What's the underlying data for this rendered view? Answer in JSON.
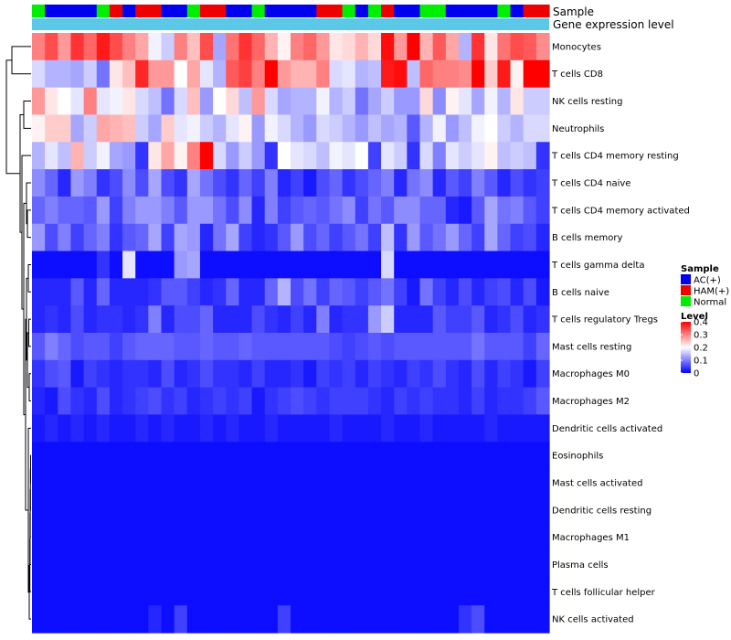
{
  "chart_data": {
    "type": "heatmap",
    "title": "",
    "annotations": [
      {
        "name": "Sample",
        "categories": [
          "N",
          "A",
          "A",
          "A",
          "A",
          "N",
          "H",
          "A",
          "H",
          "H",
          "A",
          "A",
          "N",
          "H",
          "H",
          "A",
          "A",
          "N",
          "A",
          "A",
          "A",
          "A",
          "H",
          "H",
          "N",
          "A",
          "N",
          "H",
          "A",
          "A",
          "N",
          "N",
          "A",
          "A",
          "A",
          "A",
          "N",
          "A",
          "H",
          "H"
        ]
      },
      {
        "name": "Gene expression level",
        "color": "#5bc8e8"
      }
    ],
    "rows": [
      "Monocytes",
      "T cells CD8",
      "NK cells resting",
      "Neutrophils",
      "T cells CD4 memory resting",
      "T cells CD4 naive",
      "T cells CD4 memory activated",
      "B cells memory",
      "T cells gamma delta",
      "B cells naive",
      "T cells regulatory  Tregs",
      "Mast cells resting",
      "Macrophages M0",
      "Macrophages M2",
      "Dendritic cells activated",
      "Eosinophils",
      "Mast cells activated",
      "Dendritic cells resting",
      "Macrophages M1",
      "Plasma cells",
      "T cells follicular helper",
      "NK cells activated"
    ],
    "n_columns": 40,
    "values": [
      [
        0.3,
        0.34,
        0.28,
        0.36,
        0.32,
        0.38,
        0.34,
        0.3,
        0.27,
        0.19,
        0.16,
        0.3,
        0.25,
        0.34,
        0.13,
        0.31,
        0.36,
        0.32,
        0.26,
        0.21,
        0.3,
        0.32,
        0.28,
        0.22,
        0.23,
        0.26,
        0.23,
        0.39,
        0.28,
        0.4,
        0.26,
        0.33,
        0.27,
        0.14,
        0.36,
        0.22,
        0.31,
        0.34,
        0.33,
        0.29
      ],
      [
        0.17,
        0.14,
        0.14,
        0.13,
        0.16,
        0.09,
        0.22,
        0.25,
        0.37,
        0.28,
        0.28,
        0.2,
        0.27,
        0.18,
        0.14,
        0.33,
        0.35,
        0.3,
        0.4,
        0.28,
        0.26,
        0.26,
        0.3,
        0.17,
        0.18,
        0.14,
        0.15,
        0.38,
        0.39,
        0.15,
        0.32,
        0.3,
        0.3,
        0.29,
        0.4,
        0.24,
        0.38,
        0.21,
        0.4,
        0.41
      ],
      [
        0.28,
        0.22,
        0.2,
        0.18,
        0.3,
        0.18,
        0.19,
        0.22,
        0.17,
        0.15,
        0.09,
        0.17,
        0.25,
        0.12,
        0.2,
        0.23,
        0.15,
        0.28,
        0.17,
        0.13,
        0.14,
        0.14,
        0.19,
        0.14,
        0.16,
        0.09,
        0.13,
        0.16,
        0.12,
        0.12,
        0.23,
        0.11,
        0.21,
        0.18,
        0.13,
        0.19,
        0.14,
        0.22,
        0.16,
        0.16
      ],
      [
        0.21,
        0.24,
        0.24,
        0.13,
        0.16,
        0.27,
        0.26,
        0.25,
        0.16,
        0.13,
        0.24,
        0.18,
        0.19,
        0.16,
        0.14,
        0.18,
        0.21,
        0.12,
        0.19,
        0.17,
        0.14,
        0.12,
        0.17,
        0.16,
        0.14,
        0.12,
        0.15,
        0.13,
        0.14,
        0.07,
        0.14,
        0.19,
        0.12,
        0.15,
        0.19,
        0.2,
        0.16,
        0.14,
        0.17,
        0.17
      ],
      [
        0.14,
        0.18,
        0.15,
        0.26,
        0.16,
        0.19,
        0.13,
        0.12,
        0.04,
        0.22,
        0.27,
        0.21,
        0.3,
        0.41,
        0.17,
        0.12,
        0.16,
        0.12,
        0.04,
        0.2,
        0.18,
        0.17,
        0.15,
        0.19,
        0.18,
        0.2,
        0.05,
        0.18,
        0.16,
        0.04,
        0.17,
        0.1,
        0.18,
        0.16,
        0.18,
        0.21,
        0.15,
        0.16,
        0.15,
        0.04
      ],
      [
        0.11,
        0.08,
        0.03,
        0.12,
        0.1,
        0.04,
        0.06,
        0.11,
        0.06,
        0.13,
        0.06,
        0.04,
        0.13,
        0.09,
        0.06,
        0.04,
        0.08,
        0.05,
        0.1,
        0.03,
        0.05,
        0.02,
        0.06,
        0.08,
        0.04,
        0.06,
        0.08,
        0.1,
        0.03,
        0.09,
        0.11,
        0.03,
        0.07,
        0.05,
        0.1,
        0.07,
        0.03,
        0.06,
        0.04,
        0.05
      ],
      [
        0.08,
        0.1,
        0.08,
        0.08,
        0.07,
        0.12,
        0.05,
        0.1,
        0.12,
        0.12,
        0.1,
        0.07,
        0.12,
        0.12,
        0.09,
        0.06,
        0.11,
        0.03,
        0.1,
        0.05,
        0.07,
        0.08,
        0.07,
        0.09,
        0.11,
        0.05,
        0.09,
        0.07,
        0.11,
        0.11,
        0.08,
        0.08,
        0.03,
        0.02,
        0.07,
        0.13,
        0.09,
        0.1,
        0.07,
        0.05
      ],
      [
        0.12,
        0.06,
        0.1,
        0.05,
        0.08,
        0.1,
        0.04,
        0.07,
        0.08,
        0.13,
        0.05,
        0.13,
        0.12,
        0.03,
        0.09,
        0.13,
        0.05,
        0.03,
        0.04,
        0.07,
        0.12,
        0.06,
        0.08,
        0.05,
        0.07,
        0.09,
        0.05,
        0.15,
        0.04,
        0.12,
        0.07,
        0.09,
        0.12,
        0.08,
        0.05,
        0.13,
        0.08,
        0.05,
        0.06,
        0.03
      ],
      [
        0.01,
        0.01,
        0.01,
        0.01,
        0.01,
        0.04,
        0.01,
        0.18,
        0.01,
        0.01,
        0.01,
        0.12,
        0.13,
        0.01,
        0.01,
        0.01,
        0.01,
        0.01,
        0.01,
        0.01,
        0.01,
        0.01,
        0.01,
        0.01,
        0.01,
        0.01,
        0.01,
        0.17,
        0.01,
        0.01,
        0.01,
        0.01,
        0.01,
        0.01,
        0.01,
        0.01,
        0.01,
        0.01,
        0.01,
        0.01
      ],
      [
        0.03,
        0.03,
        0.03,
        0.07,
        0.03,
        0.08,
        0.03,
        0.03,
        0.03,
        0.04,
        0.07,
        0.07,
        0.05,
        0.03,
        0.04,
        0.08,
        0.03,
        0.03,
        0.08,
        0.14,
        0.06,
        0.09,
        0.05,
        0.08,
        0.07,
        0.05,
        0.07,
        0.09,
        0.05,
        0.02,
        0.09,
        0.05,
        0.03,
        0.06,
        0.03,
        0.05,
        0.06,
        0.03,
        0.06,
        0.02
      ],
      [
        0.03,
        0.04,
        0.03,
        0.06,
        0.03,
        0.04,
        0.04,
        0.03,
        0.04,
        0.1,
        0.03,
        0.06,
        0.06,
        0.08,
        0.03,
        0.03,
        0.03,
        0.06,
        0.04,
        0.03,
        0.05,
        0.03,
        0.1,
        0.03,
        0.04,
        0.04,
        0.12,
        0.16,
        0.03,
        0.03,
        0.03,
        0.07,
        0.05,
        0.05,
        0.07,
        0.03,
        0.04,
        0.06,
        0.03,
        0.04
      ],
      [
        0.07,
        0.1,
        0.08,
        0.06,
        0.07,
        0.07,
        0.05,
        0.07,
        0.08,
        0.08,
        0.08,
        0.07,
        0.07,
        0.08,
        0.07,
        0.07,
        0.08,
        0.07,
        0.07,
        0.07,
        0.07,
        0.07,
        0.07,
        0.06,
        0.05,
        0.06,
        0.07,
        0.06,
        0.07,
        0.07,
        0.07,
        0.07,
        0.07,
        0.07,
        0.09,
        0.07,
        0.07,
        0.07,
        0.05,
        0.08
      ],
      [
        0.04,
        0.06,
        0.07,
        0.02,
        0.05,
        0.04,
        0.03,
        0.04,
        0.04,
        0.03,
        0.06,
        0.03,
        0.04,
        0.06,
        0.04,
        0.04,
        0.03,
        0.05,
        0.03,
        0.03,
        0.04,
        0.02,
        0.05,
        0.04,
        0.05,
        0.03,
        0.05,
        0.04,
        0.03,
        0.05,
        0.04,
        0.06,
        0.04,
        0.03,
        0.06,
        0.03,
        0.05,
        0.04,
        0.02,
        0.05
      ],
      [
        0.03,
        0.02,
        0.06,
        0.04,
        0.03,
        0.06,
        0.03,
        0.04,
        0.05,
        0.06,
        0.04,
        0.05,
        0.03,
        0.04,
        0.05,
        0.04,
        0.05,
        0.02,
        0.04,
        0.05,
        0.06,
        0.05,
        0.04,
        0.05,
        0.05,
        0.05,
        0.04,
        0.03,
        0.05,
        0.04,
        0.05,
        0.04,
        0.04,
        0.03,
        0.05,
        0.03,
        0.04,
        0.04,
        0.05,
        0.07
      ],
      [
        0.02,
        0.03,
        0.02,
        0.03,
        0.02,
        0.03,
        0.02,
        0.02,
        0.03,
        0.02,
        0.03,
        0.02,
        0.02,
        0.03,
        0.02,
        0.03,
        0.02,
        0.02,
        0.03,
        0.02,
        0.02,
        0.02,
        0.02,
        0.03,
        0.02,
        0.02,
        0.02,
        0.03,
        0.02,
        0.02,
        0.03,
        0.02,
        0.02,
        0.02,
        0.02,
        0.03,
        0.02,
        0.02,
        0.02,
        0.02
      ],
      [
        0.01,
        0.01,
        0.01,
        0.01,
        0.01,
        0.01,
        0.01,
        0.01,
        0.01,
        0.01,
        0.01,
        0.01,
        0.01,
        0.01,
        0.01,
        0.01,
        0.01,
        0.01,
        0.01,
        0.01,
        0.01,
        0.01,
        0.01,
        0.01,
        0.01,
        0.01,
        0.01,
        0.01,
        0.01,
        0.01,
        0.01,
        0.01,
        0.01,
        0.01,
        0.01,
        0.01,
        0.01,
        0.01,
        0.01,
        0.01
      ],
      [
        0.01,
        0.01,
        0.01,
        0.01,
        0.01,
        0.01,
        0.01,
        0.01,
        0.01,
        0.01,
        0.01,
        0.01,
        0.01,
        0.01,
        0.01,
        0.01,
        0.01,
        0.01,
        0.01,
        0.01,
        0.01,
        0.01,
        0.01,
        0.01,
        0.01,
        0.01,
        0.01,
        0.01,
        0.01,
        0.01,
        0.01,
        0.01,
        0.01,
        0.01,
        0.01,
        0.01,
        0.01,
        0.01,
        0.01,
        0.01
      ],
      [
        0.01,
        0.01,
        0.01,
        0.01,
        0.01,
        0.01,
        0.01,
        0.01,
        0.01,
        0.01,
        0.01,
        0.01,
        0.01,
        0.01,
        0.01,
        0.01,
        0.01,
        0.01,
        0.01,
        0.01,
        0.01,
        0.01,
        0.01,
        0.01,
        0.01,
        0.01,
        0.01,
        0.01,
        0.01,
        0.01,
        0.01,
        0.01,
        0.01,
        0.01,
        0.01,
        0.01,
        0.01,
        0.01,
        0.01,
        0.01
      ],
      [
        0.01,
        0.01,
        0.01,
        0.01,
        0.01,
        0.01,
        0.01,
        0.01,
        0.01,
        0.01,
        0.01,
        0.01,
        0.01,
        0.01,
        0.01,
        0.01,
        0.01,
        0.01,
        0.01,
        0.01,
        0.01,
        0.01,
        0.01,
        0.01,
        0.01,
        0.01,
        0.01,
        0.01,
        0.01,
        0.01,
        0.01,
        0.01,
        0.01,
        0.01,
        0.01,
        0.01,
        0.01,
        0.01,
        0.01,
        0.01
      ],
      [
        0.01,
        0.01,
        0.01,
        0.01,
        0.01,
        0.01,
        0.01,
        0.01,
        0.01,
        0.01,
        0.01,
        0.01,
        0.01,
        0.01,
        0.01,
        0.01,
        0.01,
        0.01,
        0.01,
        0.01,
        0.01,
        0.01,
        0.01,
        0.01,
        0.01,
        0.01,
        0.01,
        0.01,
        0.01,
        0.01,
        0.01,
        0.01,
        0.01,
        0.01,
        0.01,
        0.01,
        0.01,
        0.01,
        0.01,
        0.01
      ],
      [
        0.01,
        0.01,
        0.01,
        0.01,
        0.01,
        0.01,
        0.01,
        0.01,
        0.01,
        0.01,
        0.01,
        0.01,
        0.01,
        0.01,
        0.01,
        0.01,
        0.01,
        0.01,
        0.01,
        0.01,
        0.01,
        0.01,
        0.01,
        0.01,
        0.01,
        0.01,
        0.01,
        0.01,
        0.01,
        0.01,
        0.01,
        0.01,
        0.01,
        0.01,
        0.01,
        0.01,
        0.01,
        0.01,
        0.01,
        0.01
      ],
      [
        0.01,
        0.01,
        0.01,
        0.01,
        0.01,
        0.01,
        0.01,
        0.01,
        0.01,
        0.03,
        0.01,
        0.05,
        0.01,
        0.01,
        0.01,
        0.01,
        0.01,
        0.01,
        0.01,
        0.05,
        0.01,
        0.01,
        0.01,
        0.01,
        0.01,
        0.01,
        0.01,
        0.01,
        0.01,
        0.01,
        0.01,
        0.01,
        0.01,
        0.04,
        0.06,
        0.01,
        0.01,
        0.01,
        0.01,
        0.01
      ]
    ],
    "color_scale": {
      "low": "#0000ff",
      "mid": "#ffffff",
      "high": "#ff0000",
      "min": 0,
      "mid_value": 0.2,
      "max": 0.4
    },
    "legend": {
      "sample_title": "Sample",
      "sample_items": [
        {
          "key": "A",
          "label": "AC(+)",
          "color": "#0000ee"
        },
        {
          "key": "H",
          "label": "HAM(+)",
          "color": "#ee0000"
        },
        {
          "key": "N",
          "label": "Normal",
          "color": "#00ee00"
        }
      ],
      "level_title": "Level",
      "level_ticks": [
        0.4,
        0.3,
        0.2,
        0.1,
        0
      ],
      "level_tick_labels": [
        "0.4",
        "0.3",
        "0.2",
        "0.1",
        "0"
      ]
    }
  }
}
